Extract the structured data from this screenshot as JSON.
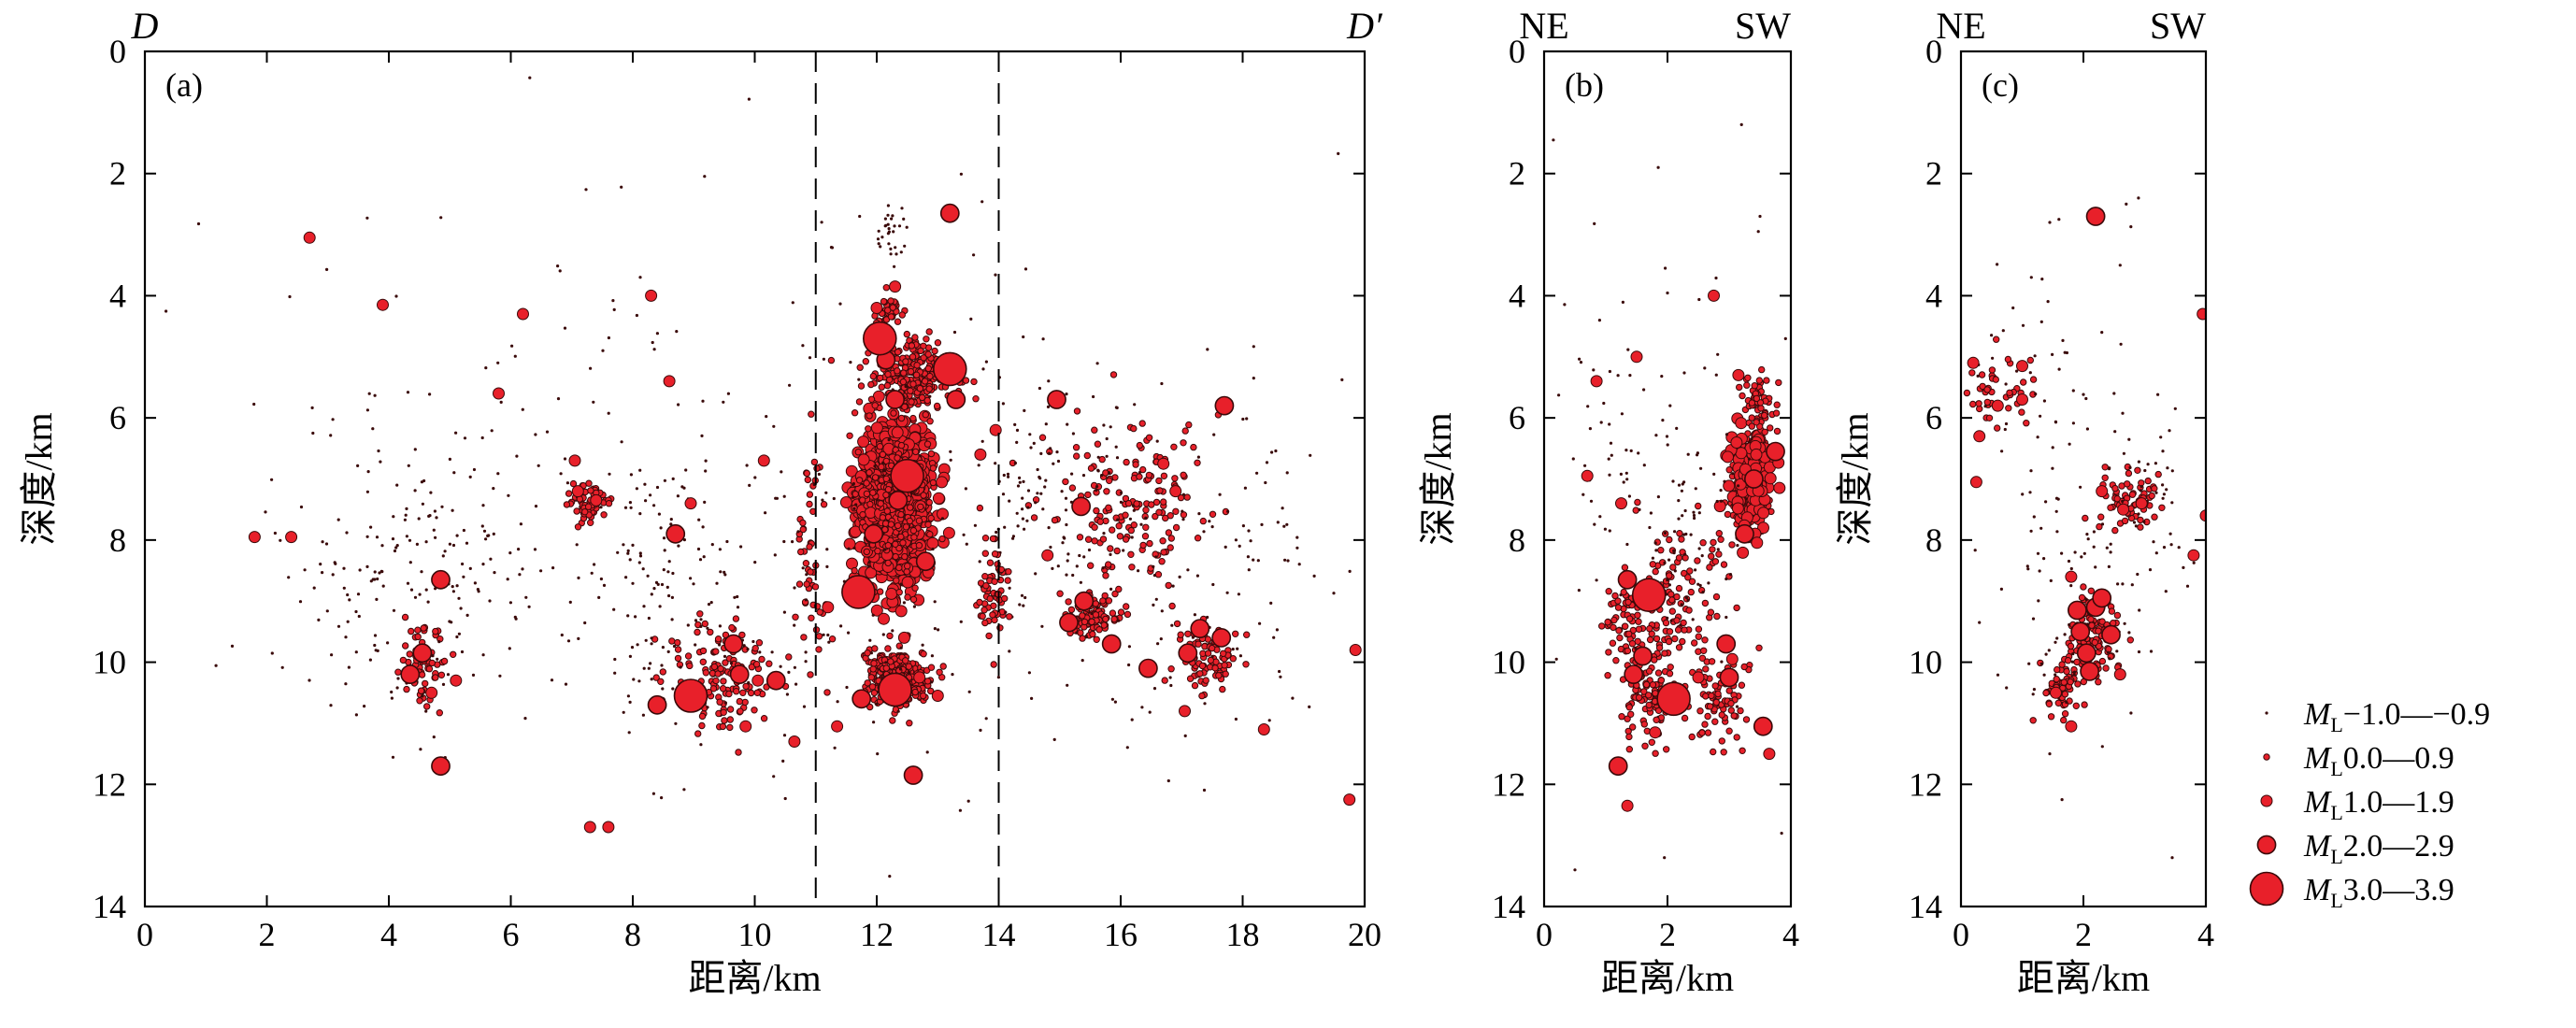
{
  "colors": {
    "marker_fill": "#e8202a",
    "marker_stroke": "#3a0a0a",
    "axis": "#000000",
    "divider": "#000000"
  },
  "chart_data": [
    {
      "id": "a",
      "type": "scatter",
      "panel_label": "(a)",
      "corner_left": "D",
      "corner_right": "D′",
      "xlabel": "距离/km",
      "ylabel": "深度/km",
      "xlim": [
        0,
        20
      ],
      "ylim": [
        0,
        14
      ],
      "y_inverted": true,
      "xticks": [
        0,
        2,
        4,
        6,
        8,
        10,
        12,
        14,
        16,
        18,
        20
      ],
      "yticks": [
        0,
        2,
        4,
        6,
        8,
        10,
        12,
        14
      ],
      "dashed_vlines": [
        11,
        14
      ],
      "points": [
        [
          11.7,
          8.85,
          4
        ],
        [
          12.5,
          6.95,
          4
        ],
        [
          12.3,
          10.45,
          4
        ],
        [
          8.95,
          10.55,
          4
        ],
        [
          12.05,
          4.7,
          4
        ],
        [
          13.2,
          5.2,
          4
        ],
        [
          4.85,
          8.65,
          3
        ],
        [
          4.35,
          10.2,
          3
        ],
        [
          4.55,
          9.85,
          3
        ],
        [
          4.85,
          11.7,
          3
        ],
        [
          12.6,
          11.85,
          3
        ],
        [
          12.15,
          5.05,
          3
        ],
        [
          12.35,
          7.35,
          3
        ],
        [
          11.95,
          7.9,
          3
        ],
        [
          17.3,
          9.45,
          3
        ],
        [
          17.65,
          9.6,
          3
        ],
        [
          17.1,
          9.85,
          3
        ],
        [
          15.4,
          9.0,
          3
        ],
        [
          15.85,
          9.7,
          3
        ],
        [
          16.45,
          10.1,
          3
        ],
        [
          15.15,
          9.35,
          3
        ],
        [
          8.7,
          7.9,
          3
        ],
        [
          11.75,
          10.6,
          3
        ],
        [
          12.8,
          8.35,
          3
        ],
        [
          13.3,
          5.7,
          3
        ],
        [
          13.2,
          2.65,
          3
        ],
        [
          12.3,
          5.7,
          3
        ],
        [
          17.7,
          5.8,
          3
        ],
        [
          14.95,
          5.7,
          3
        ],
        [
          9.65,
          9.7,
          3
        ],
        [
          8.4,
          10.7,
          3
        ],
        [
          10.35,
          10.3,
          3
        ],
        [
          9.75,
          10.2,
          3
        ],
        [
          15.35,
          7.45,
          3
        ],
        [
          1.8,
          7.95,
          2
        ],
        [
          3.9,
          4.15,
          2
        ],
        [
          6.2,
          4.3,
          2
        ],
        [
          8.3,
          4.0,
          2
        ],
        [
          8.6,
          5.4,
          2
        ],
        [
          7.4,
          7.35,
          2
        ],
        [
          7.1,
          7.2,
          2
        ],
        [
          7.3,
          12.7,
          2
        ],
        [
          7.6,
          12.7,
          2
        ],
        [
          5.1,
          10.3,
          2
        ],
        [
          4.7,
          10.5,
          2
        ],
        [
          8.95,
          7.4,
          2
        ],
        [
          10.05,
          10.3,
          2
        ],
        [
          9.85,
          11.05,
          2
        ],
        [
          10.65,
          11.3,
          2
        ],
        [
          11.35,
          11.05,
          2
        ],
        [
          11.2,
          9.1,
          2
        ],
        [
          12.7,
          10.25,
          2
        ],
        [
          13.0,
          10.55,
          2
        ],
        [
          12.45,
          9.6,
          2
        ],
        [
          13.7,
          6.6,
          2
        ],
        [
          13.95,
          6.2,
          2
        ],
        [
          14.8,
          8.25,
          2
        ],
        [
          16.7,
          6.75,
          2
        ],
        [
          16.9,
          7.2,
          2
        ],
        [
          17.05,
          10.8,
          2
        ],
        [
          18.35,
          11.1,
          2
        ],
        [
          19.75,
          12.25,
          2
        ],
        [
          19.85,
          9.8,
          2
        ],
        [
          12.0,
          4.2,
          2
        ],
        [
          12.3,
          3.85,
          2
        ],
        [
          7.05,
          6.7,
          2
        ],
        [
          5.8,
          5.6,
          2
        ],
        [
          2.7,
          3.05,
          2
        ],
        [
          2.4,
          7.95,
          2
        ],
        [
          10.15,
          6.7,
          2
        ]
      ],
      "scatter_clusters": [
        [
          12.3,
          7.4,
          0.55,
          1.25,
          1000,
          2
        ],
        [
          12.3,
          7.4,
          0.6,
          1.3,
          200,
          1
        ],
        [
          12.35,
          10.25,
          0.55,
          0.45,
          280,
          1
        ],
        [
          12.6,
          5.3,
          0.65,
          0.55,
          250,
          1
        ],
        [
          12.2,
          4.25,
          0.25,
          0.35,
          40,
          1
        ],
        [
          12.2,
          3.0,
          0.3,
          0.6,
          30,
          0
        ],
        [
          15.5,
          9.2,
          0.5,
          0.4,
          100,
          1
        ],
        [
          17.4,
          9.9,
          0.5,
          0.6,
          90,
          1
        ],
        [
          16.2,
          7.4,
          1.3,
          1.3,
          160,
          1
        ],
        [
          9.5,
          10.2,
          0.9,
          0.9,
          140,
          1
        ],
        [
          7.3,
          7.4,
          0.3,
          0.3,
          70,
          1
        ],
        [
          4.5,
          10.0,
          0.35,
          0.6,
          70,
          1
        ],
        [
          5.0,
          8.5,
          1.6,
          2.4,
          120,
          0
        ],
        [
          3.5,
          9.0,
          1.3,
          2.5,
          60,
          0
        ],
        [
          14.5,
          7.5,
          1.0,
          2.5,
          90,
          0
        ],
        [
          13.9,
          8.8,
          0.25,
          0.9,
          60,
          1
        ],
        [
          10.9,
          8.5,
          0.25,
          2.0,
          50,
          1
        ],
        [
          8.5,
          9.0,
          1.0,
          2.5,
          90,
          0
        ],
        [
          10.0,
          9.0,
          3.5,
          3.0,
          150,
          0
        ],
        [
          17.0,
          8.5,
          2.5,
          3.0,
          140,
          0
        ],
        [
          10.0,
          6.0,
          9.0,
          4.0,
          150,
          0
        ]
      ]
    },
    {
      "id": "b",
      "type": "scatter",
      "panel_label": "(b)",
      "corner_left": "NE",
      "corner_right": "SW",
      "xlabel": "距离/km",
      "ylabel": "深度/km",
      "xlim": [
        0,
        4
      ],
      "ylim": [
        0,
        14
      ],
      "y_inverted": true,
      "xticks": [
        0,
        2,
        4
      ],
      "yticks": [
        0,
        2,
        4,
        6,
        8,
        10,
        12,
        14
      ],
      "points": [
        [
          1.7,
          8.9,
          4
        ],
        [
          2.1,
          10.6,
          4
        ],
        [
          1.35,
          8.65,
          3
        ],
        [
          1.2,
          11.7,
          3
        ],
        [
          1.6,
          9.9,
          3
        ],
        [
          3.25,
          7.9,
          3
        ],
        [
          3.4,
          7.0,
          3
        ],
        [
          3.75,
          6.55,
          3
        ],
        [
          2.95,
          9.7,
          3
        ],
        [
          1.45,
          10.2,
          3
        ],
        [
          3.0,
          10.25,
          3
        ],
        [
          3.55,
          11.05,
          3
        ],
        [
          0.85,
          5.4,
          2
        ],
        [
          1.5,
          5.0,
          2
        ],
        [
          2.75,
          4.0,
          2
        ],
        [
          0.7,
          6.95,
          2
        ],
        [
          1.25,
          7.4,
          2
        ],
        [
          3.15,
          5.3,
          2
        ],
        [
          3.05,
          9.95,
          2
        ],
        [
          2.5,
          10.25,
          2
        ],
        [
          1.8,
          11.15,
          2
        ],
        [
          1.35,
          12.35,
          2
        ],
        [
          3.65,
          11.5,
          2
        ]
      ],
      "scatter_clusters": [
        [
          3.35,
          7.1,
          0.3,
          0.7,
          260,
          1
        ],
        [
          3.35,
          7.1,
          0.35,
          0.8,
          120,
          2
        ],
        [
          3.5,
          5.8,
          0.25,
          0.5,
          60,
          1
        ],
        [
          2.2,
          9.0,
          0.9,
          1.2,
          120,
          1
        ],
        [
          1.7,
          10.6,
          0.5,
          0.6,
          100,
          1
        ],
        [
          2.9,
          10.6,
          0.5,
          0.8,
          80,
          1
        ],
        [
          1.3,
          9.4,
          0.35,
          0.7,
          60,
          1
        ],
        [
          2.3,
          7.8,
          1.1,
          2.2,
          80,
          0
        ],
        [
          0.9,
          6.5,
          0.6,
          2.0,
          30,
          0
        ],
        [
          2.0,
          5.0,
          1.6,
          3.0,
          25,
          0
        ]
      ],
      "extra_small": [
        [
          0.15,
          1.45
        ],
        [
          1.85,
          1.9
        ],
        [
          3.2,
          1.2
        ],
        [
          0.9,
          4.4
        ],
        [
          3.5,
          2.7
        ],
        [
          0.2,
          9.95
        ],
        [
          0.5,
          13.4
        ],
        [
          3.85,
          12.8
        ],
        [
          1.95,
          13.2
        ]
      ]
    },
    {
      "id": "c",
      "type": "scatter",
      "panel_label": "(c)",
      "corner_left": "NE",
      "corner_right": "SW",
      "xlabel": "距离/km",
      "ylabel": "深度/km",
      "xlim": [
        0,
        4
      ],
      "ylim": [
        0,
        14
      ],
      "y_inverted": true,
      "xticks": [
        0,
        2,
        4
      ],
      "yticks": [
        0,
        2,
        4,
        6,
        8,
        10,
        12,
        14
      ],
      "points": [
        [
          2.2,
          9.1,
          3
        ],
        [
          1.95,
          9.5,
          3
        ],
        [
          2.45,
          9.55,
          3
        ],
        [
          2.05,
          9.85,
          3
        ],
        [
          2.1,
          10.15,
          3
        ],
        [
          2.2,
          2.7,
          3
        ],
        [
          2.3,
          8.95,
          3
        ],
        [
          1.9,
          9.15,
          3
        ],
        [
          0.2,
          5.1,
          2
        ],
        [
          0.6,
          5.8,
          2
        ],
        [
          1.0,
          5.7,
          2
        ],
        [
          1.0,
          5.15,
          2
        ],
        [
          0.25,
          7.05,
          2
        ],
        [
          1.8,
          8.6,
          2
        ],
        [
          2.3,
          7.2,
          2
        ],
        [
          2.65,
          7.5,
          2
        ],
        [
          2.95,
          7.4,
          2
        ],
        [
          2.6,
          10.2,
          2
        ],
        [
          1.8,
          11.05,
          2
        ],
        [
          3.8,
          8.25,
          2
        ],
        [
          4.0,
          7.6,
          2
        ],
        [
          3.95,
          4.3,
          2
        ],
        [
          0.3,
          6.3,
          2
        ],
        [
          1.55,
          10.5,
          2
        ]
      ],
      "scatter_clusters": [
        [
          2.15,
          9.6,
          0.4,
          0.7,
          110,
          1
        ],
        [
          2.7,
          7.4,
          0.5,
          0.5,
          70,
          1
        ],
        [
          1.7,
          10.4,
          0.35,
          0.45,
          60,
          1
        ],
        [
          0.6,
          5.6,
          0.5,
          0.6,
          40,
          1
        ],
        [
          2.0,
          8.4,
          1.4,
          2.4,
          100,
          0
        ],
        [
          1.2,
          5.5,
          1.0,
          2.0,
          40,
          0
        ],
        [
          3.2,
          7.2,
          0.6,
          1.6,
          30,
          0
        ]
      ],
      "extra_small": [
        [
          1.45,
          2.8
        ],
        [
          1.6,
          2.75
        ],
        [
          1.15,
          3.7
        ],
        [
          0.85,
          4.2
        ],
        [
          2.7,
          2.5
        ],
        [
          2.9,
          2.4
        ],
        [
          2.6,
          3.5
        ],
        [
          2.3,
          4.6
        ],
        [
          2.5,
          5.6
        ],
        [
          3.5,
          5.85
        ],
        [
          3.45,
          13.2
        ],
        [
          1.65,
          12.25
        ],
        [
          1.45,
          11.5
        ],
        [
          0.3,
          9.35
        ]
      ]
    }
  ],
  "legend": {
    "items": [
      {
        "label_main": "M",
        "label_sub": "L",
        "label_range": "−1.0—−0.9",
        "size": 0
      },
      {
        "label_main": "M",
        "label_sub": "L",
        "label_range": "0.0—0.9",
        "size": 1
      },
      {
        "label_main": "M",
        "label_sub": "L",
        "label_range": "1.0—1.9",
        "size": 2
      },
      {
        "label_main": "M",
        "label_sub": "L",
        "label_range": "2.0—2.9",
        "size": 3
      },
      {
        "label_main": "M",
        "label_sub": "L",
        "label_range": "3.0—3.9",
        "size": 4
      }
    ]
  }
}
